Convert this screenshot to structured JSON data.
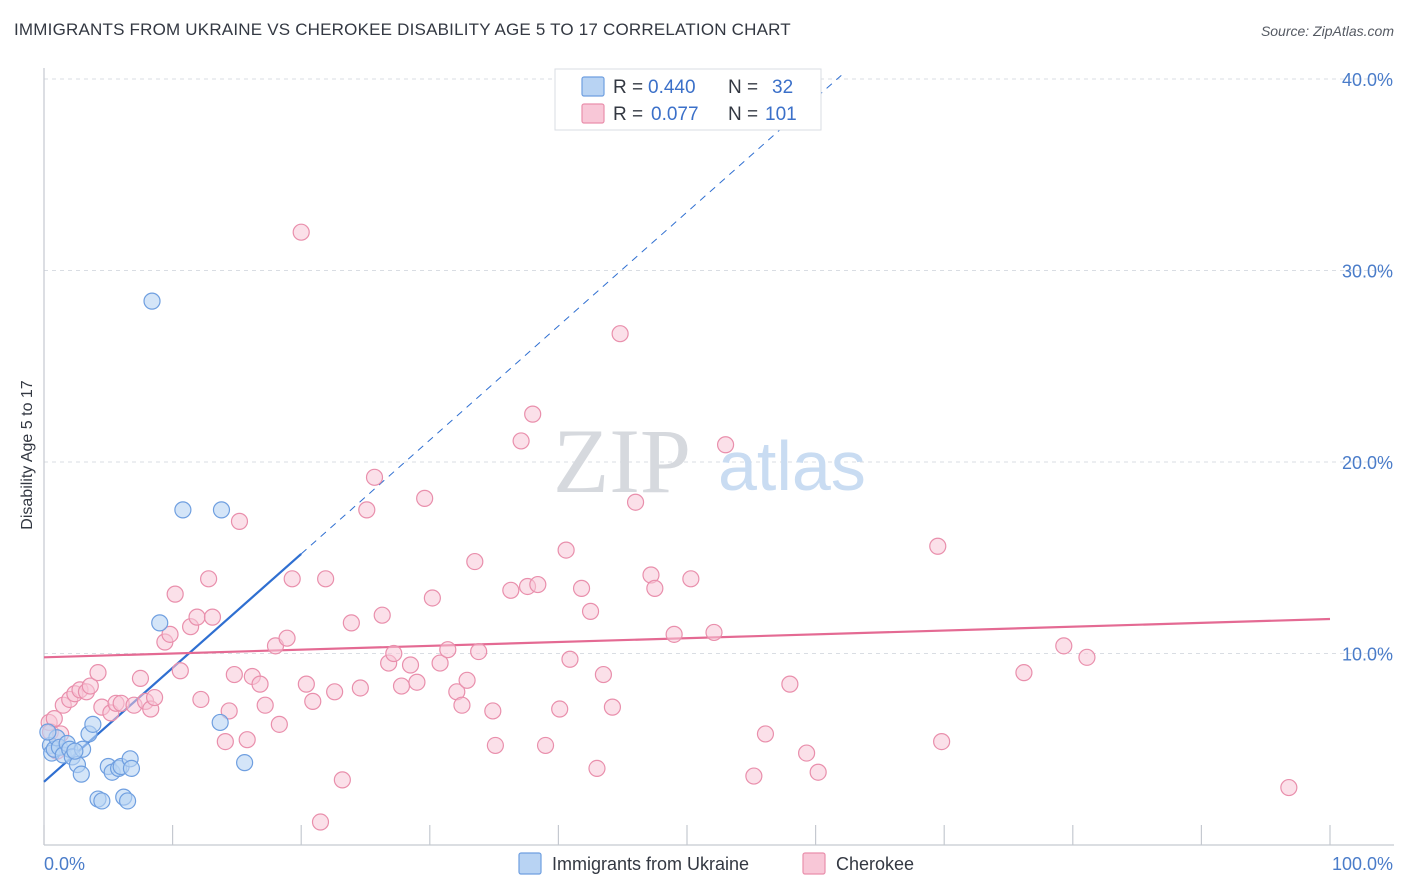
{
  "header": {
    "title": "IMMIGRANTS FROM UKRAINE VS CHEROKEE DISABILITY AGE 5 TO 17 CORRELATION CHART",
    "source": "Source: ZipAtlas.com"
  },
  "watermark": {
    "part1": "ZIP",
    "part2": "atlas"
  },
  "colors": {
    "ukraine_fill": "#b8d3f3",
    "ukraine_stroke": "#6f9fe0",
    "ukraine_line": "#2f6fd1",
    "cherokee_fill": "#f8c7d7",
    "cherokee_stroke": "#e98fac",
    "cherokee_line": "#e46a93",
    "tick_text": "#4a7cc9",
    "grid": "#d9dde3"
  },
  "legend": {
    "rows": [
      {
        "r_label": "R = ",
        "r_value": "0.440",
        "n_label": "N = ",
        "n_value": "32"
      },
      {
        "r_label": "R = ",
        "r_value": "0.077",
        "n_label": "N = ",
        "n_value": "101"
      }
    ]
  },
  "chart_data": {
    "type": "scatter",
    "title": "IMMIGRANTS FROM UKRAINE VS CHEROKEE DISABILITY AGE 5 TO 17 CORRELATION CHART",
    "xlabel": "",
    "ylabel": "Disability Age 5 to 17",
    "xlim": [
      0,
      100
    ],
    "ylim": [
      0,
      40
    ],
    "x_tick_labels": [
      "0.0%",
      "100.0%"
    ],
    "y_ticks": [
      10,
      20,
      30,
      40
    ],
    "y_tick_labels": [
      "10.0%",
      "20.0%",
      "30.0%",
      "40.0%"
    ],
    "grid": true,
    "legend_position": "top-center",
    "series": [
      {
        "name": "Immigrants from Ukraine",
        "R": 0.44,
        "N": 32,
        "trend": {
          "x0": 0,
          "y0": 3.3,
          "x1": 20,
          "y1": 15.2,
          "dashed_to_x": 62
        },
        "points": [
          [
            0.5,
            5.2
          ],
          [
            0.6,
            4.8
          ],
          [
            0.8,
            5.0
          ],
          [
            1.0,
            5.6
          ],
          [
            1.2,
            5.1
          ],
          [
            1.5,
            4.7
          ],
          [
            1.8,
            5.3
          ],
          [
            2.0,
            5.0
          ],
          [
            2.2,
            4.6
          ],
          [
            2.6,
            4.2
          ],
          [
            2.9,
            3.7
          ],
          [
            3.0,
            5.0
          ],
          [
            3.5,
            5.8
          ],
          [
            3.8,
            6.3
          ],
          [
            4.2,
            2.4
          ],
          [
            4.5,
            2.3
          ],
          [
            5.0,
            4.1
          ],
          [
            5.3,
            3.8
          ],
          [
            5.8,
            4.0
          ],
          [
            6.0,
            4.1
          ],
          [
            6.2,
            2.5
          ],
          [
            6.5,
            2.3
          ],
          [
            6.7,
            4.5
          ],
          [
            6.8,
            4.0
          ],
          [
            8.4,
            28.4
          ],
          [
            9.0,
            11.6
          ],
          [
            10.8,
            17.5
          ],
          [
            13.8,
            17.5
          ],
          [
            13.7,
            6.4
          ],
          [
            15.6,
            4.3
          ],
          [
            0.3,
            5.9
          ],
          [
            2.4,
            4.9
          ]
        ]
      },
      {
        "name": "Cherokee",
        "R": 0.077,
        "N": 101,
        "trend": {
          "x0": 0,
          "y0": 9.8,
          "x1": 100,
          "y1": 11.8
        },
        "points": [
          [
            0.4,
            6.4
          ],
          [
            0.5,
            5.9
          ],
          [
            0.8,
            6.6
          ],
          [
            1.0,
            4.9
          ],
          [
            1.3,
            5.8
          ],
          [
            1.5,
            7.3
          ],
          [
            2.0,
            7.6
          ],
          [
            2.4,
            7.9
          ],
          [
            2.8,
            8.1
          ],
          [
            3.3,
            8.0
          ],
          [
            3.6,
            8.3
          ],
          [
            4.2,
            9.0
          ],
          [
            4.5,
            7.2
          ],
          [
            5.2,
            6.9
          ],
          [
            5.6,
            7.4
          ],
          [
            6.0,
            7.4
          ],
          [
            7.0,
            7.3
          ],
          [
            7.5,
            8.7
          ],
          [
            7.9,
            7.5
          ],
          [
            8.3,
            7.1
          ],
          [
            8.6,
            7.7
          ],
          [
            9.4,
            10.6
          ],
          [
            9.8,
            11.0
          ],
          [
            10.2,
            13.1
          ],
          [
            10.6,
            9.1
          ],
          [
            11.4,
            11.4
          ],
          [
            11.9,
            11.9
          ],
          [
            12.2,
            7.6
          ],
          [
            12.8,
            13.9
          ],
          [
            13.1,
            11.9
          ],
          [
            14.1,
            5.4
          ],
          [
            14.4,
            7.0
          ],
          [
            14.8,
            8.9
          ],
          [
            15.2,
            16.9
          ],
          [
            15.8,
            5.5
          ],
          [
            16.2,
            8.8
          ],
          [
            16.8,
            8.4
          ],
          [
            17.2,
            7.3
          ],
          [
            18.0,
            10.4
          ],
          [
            18.3,
            6.3
          ],
          [
            18.9,
            10.8
          ],
          [
            19.3,
            13.9
          ],
          [
            20.0,
            32.0
          ],
          [
            20.4,
            8.4
          ],
          [
            20.9,
            7.5
          ],
          [
            21.5,
            1.2
          ],
          [
            21.9,
            13.9
          ],
          [
            22.6,
            8.0
          ],
          [
            23.2,
            3.4
          ],
          [
            23.9,
            11.6
          ],
          [
            24.6,
            8.2
          ],
          [
            25.1,
            17.5
          ],
          [
            25.7,
            19.2
          ],
          [
            26.3,
            12.0
          ],
          [
            26.8,
            9.5
          ],
          [
            27.2,
            10.0
          ],
          [
            27.8,
            8.3
          ],
          [
            28.5,
            9.4
          ],
          [
            29.0,
            8.5
          ],
          [
            29.6,
            18.1
          ],
          [
            30.2,
            12.9
          ],
          [
            30.8,
            9.5
          ],
          [
            31.4,
            10.2
          ],
          [
            32.1,
            8.0
          ],
          [
            32.5,
            7.3
          ],
          [
            32.9,
            8.6
          ],
          [
            33.5,
            14.8
          ],
          [
            33.8,
            10.1
          ],
          [
            34.9,
            7.0
          ],
          [
            35.1,
            5.2
          ],
          [
            36.3,
            13.3
          ],
          [
            37.1,
            21.1
          ],
          [
            37.6,
            13.5
          ],
          [
            38.0,
            22.5
          ],
          [
            38.4,
            13.6
          ],
          [
            39.0,
            5.2
          ],
          [
            40.1,
            7.1
          ],
          [
            40.6,
            15.4
          ],
          [
            40.9,
            9.7
          ],
          [
            41.8,
            13.4
          ],
          [
            42.5,
            12.2
          ],
          [
            43.0,
            4.0
          ],
          [
            43.5,
            8.9
          ],
          [
            44.2,
            7.2
          ],
          [
            44.8,
            26.7
          ],
          [
            46.0,
            17.9
          ],
          [
            47.2,
            14.1
          ],
          [
            47.5,
            13.4
          ],
          [
            49.0,
            11.0
          ],
          [
            50.3,
            13.9
          ],
          [
            52.1,
            11.1
          ],
          [
            53.0,
            20.9
          ],
          [
            55.2,
            3.6
          ],
          [
            56.1,
            5.8
          ],
          [
            58.0,
            8.4
          ],
          [
            59.3,
            4.8
          ],
          [
            60.2,
            3.8
          ],
          [
            69.5,
            15.6
          ],
          [
            69.8,
            5.4
          ],
          [
            76.2,
            9.0
          ],
          [
            79.3,
            10.4
          ],
          [
            81.1,
            9.8
          ],
          [
            96.8,
            3.0
          ]
        ]
      }
    ]
  },
  "bottom_legend": {
    "items": [
      {
        "label": "Immigrants from Ukraine"
      },
      {
        "label": "Cherokee"
      }
    ]
  }
}
